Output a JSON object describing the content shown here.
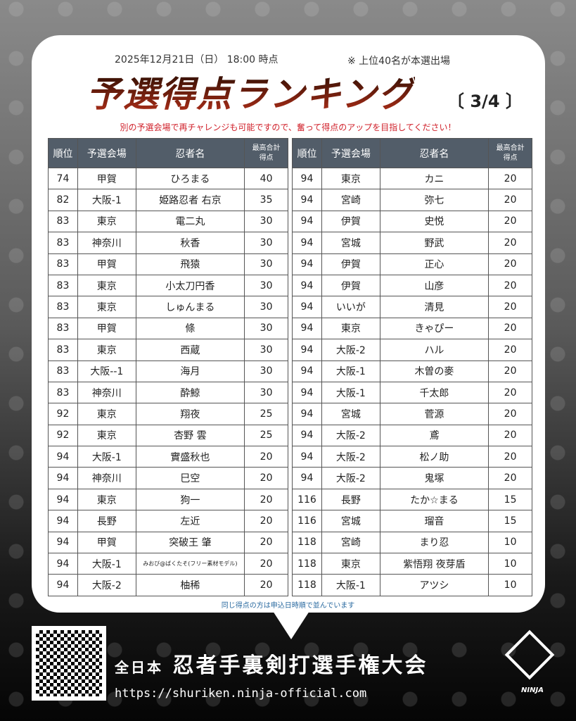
{
  "header": {
    "date": "2025年12月21日（日） 18:00 時点",
    "note": "※ 上位40名が本選出場",
    "title": "予選得点ランキング",
    "page": "〔 3/4 〕",
    "subtitle": "別の予選会場で再チャレンジも可能ですので、奮って得点のアップを目指してください！"
  },
  "columns": [
    "順位",
    "予選会場",
    "忍者名",
    "最高合計得点"
  ],
  "left_rows": [
    [
      "74",
      "甲賀",
      "ひろまる",
      "40"
    ],
    [
      "82",
      "大阪-1",
      "姫路忍者 右京",
      "35"
    ],
    [
      "83",
      "東京",
      "電二丸",
      "30"
    ],
    [
      "83",
      "神奈川",
      "秋香",
      "30"
    ],
    [
      "83",
      "甲賀",
      "飛猿",
      "30"
    ],
    [
      "83",
      "東京",
      "小太刀円香",
      "30"
    ],
    [
      "83",
      "東京",
      "しゅんまる",
      "30"
    ],
    [
      "83",
      "甲賀",
      "條",
      "30"
    ],
    [
      "83",
      "東京",
      "西蔵",
      "30"
    ],
    [
      "83",
      "大阪--1",
      "海月",
      "30"
    ],
    [
      "83",
      "神奈川",
      "酔鯨",
      "30"
    ],
    [
      "92",
      "東京",
      "翔夜",
      "25"
    ],
    [
      "92",
      "東京",
      "杏野 雲",
      "25"
    ],
    [
      "94",
      "大阪-1",
      "實盛秋也",
      "20"
    ],
    [
      "94",
      "神奈川",
      "巳空",
      "20"
    ],
    [
      "94",
      "東京",
      "狗一",
      "20"
    ],
    [
      "94",
      "長野",
      "左近",
      "20"
    ],
    [
      "94",
      "甲賀",
      "突破王 肇",
      "20"
    ],
    [
      "94",
      "大阪-1",
      "みおび@ばくたそ(フリー素材モデル)",
      "20"
    ],
    [
      "94",
      "大阪-2",
      "柚稀",
      "20"
    ]
  ],
  "right_rows": [
    [
      "94",
      "東京",
      "カニ",
      "20"
    ],
    [
      "94",
      "宮崎",
      "弥七",
      "20"
    ],
    [
      "94",
      "伊賀",
      "史悦",
      "20"
    ],
    [
      "94",
      "宮城",
      "野武",
      "20"
    ],
    [
      "94",
      "伊賀",
      "正心",
      "20"
    ],
    [
      "94",
      "伊賀",
      "山彦",
      "20"
    ],
    [
      "94",
      "いいが",
      "清見",
      "20"
    ],
    [
      "94",
      "東京",
      "きゃぴー",
      "20"
    ],
    [
      "94",
      "大阪-2",
      "ハル",
      "20"
    ],
    [
      "94",
      "大阪-1",
      "木曽の麥",
      "20"
    ],
    [
      "94",
      "大阪-1",
      "千太郎",
      "20"
    ],
    [
      "94",
      "宮城",
      "菅源",
      "20"
    ],
    [
      "94",
      "大阪-2",
      "鳶",
      "20"
    ],
    [
      "94",
      "大阪-2",
      "松ノ助",
      "20"
    ],
    [
      "94",
      "大阪-2",
      "鬼塚",
      "20"
    ],
    [
      "116",
      "長野",
      "たか☆まる",
      "15"
    ],
    [
      "116",
      "宮城",
      "瑠音",
      "15"
    ],
    [
      "118",
      "宮崎",
      "まり忍",
      "10"
    ],
    [
      "118",
      "東京",
      "紫悟翔 夜芽盾",
      "10"
    ],
    [
      "118",
      "大阪-1",
      "アツシ",
      "10"
    ]
  ],
  "footer_note": "同じ得点の方は申込日時順で並んでいます",
  "footer": {
    "brand_prefix": "全日本",
    "brand": "忍者手裏剣打選手権大会",
    "url": "https://shuriken.ninja-official.com",
    "logo_text": "NINJA"
  },
  "colors": {
    "header_bg": "#525d69",
    "accent_red": "#d0202a",
    "note_blue": "#2a6aa0"
  }
}
